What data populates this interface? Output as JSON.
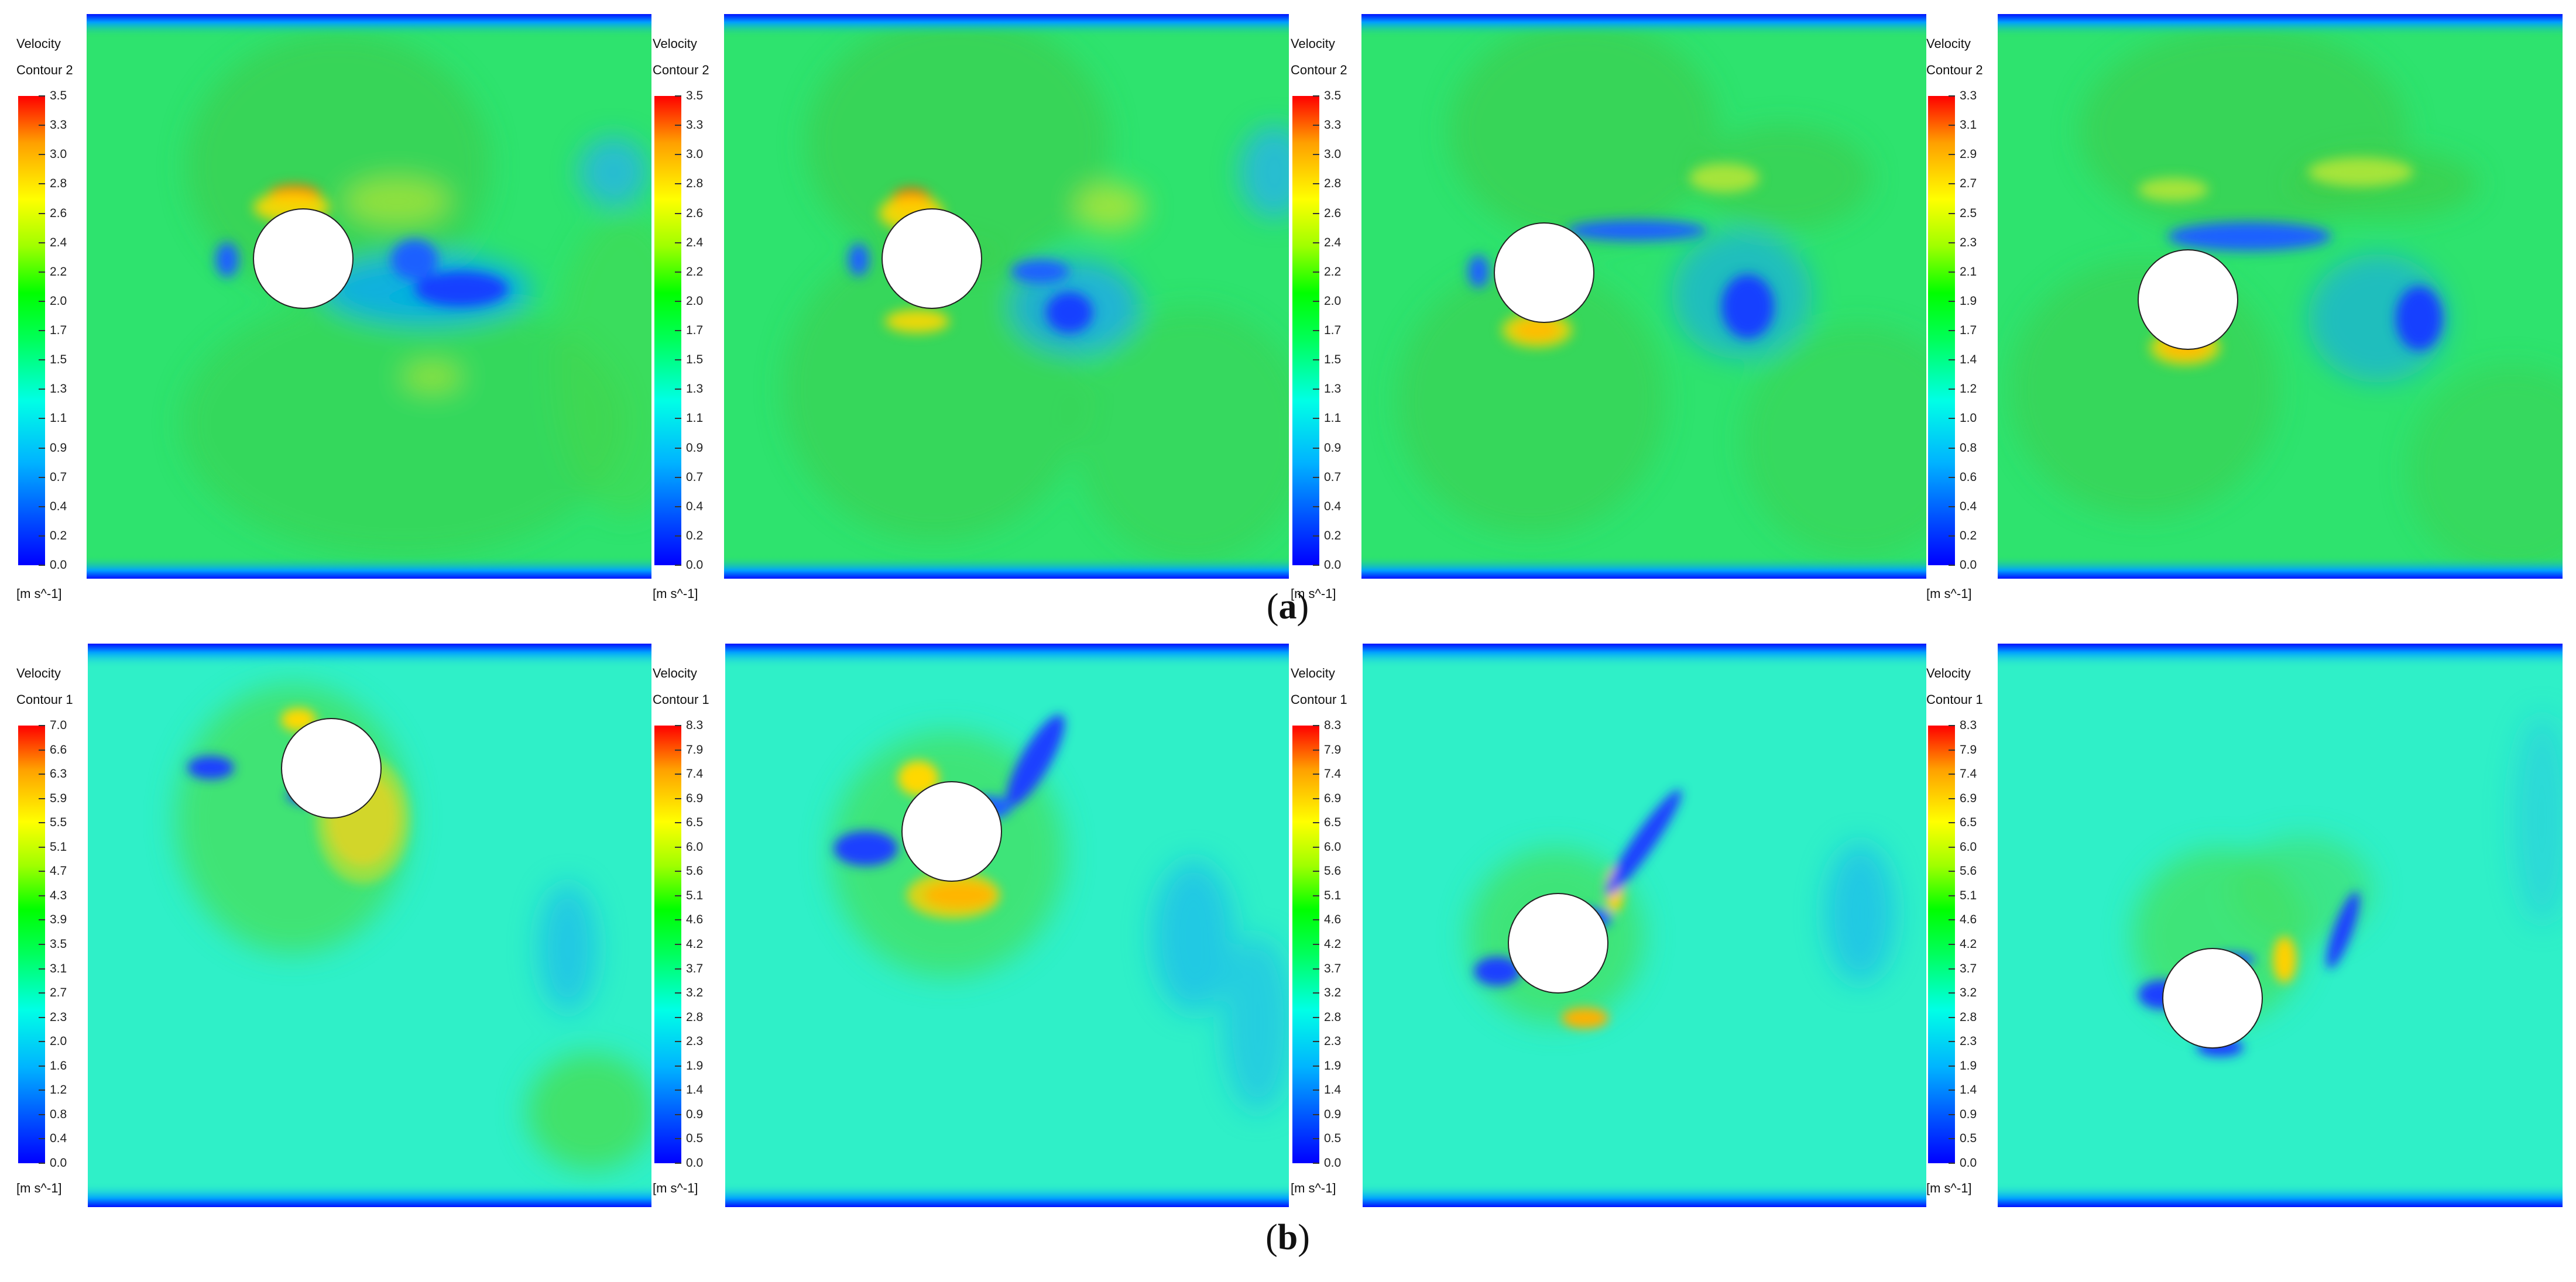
{
  "rows": [
    {
      "caption_letter": "a",
      "panels": [
        {
          "legend": {
            "title_line1": "Velocity",
            "title_line2": "Contour 2",
            "unit": "[m s^-1]",
            "ticks": [
              "3.5",
              "3.3",
              "3.0",
              "2.8",
              "2.6",
              "2.4",
              "2.2",
              "2.0",
              "1.7",
              "1.5",
              "1.3",
              "1.1",
              "0.9",
              "0.7",
              "0.4",
              "0.2",
              "0.0"
            ]
          }
        },
        {
          "legend": {
            "title_line1": "Velocity",
            "title_line2": "Contour 2",
            "unit": "[m s^-1]",
            "ticks": [
              "3.5",
              "3.3",
              "3.0",
              "2.8",
              "2.6",
              "2.4",
              "2.2",
              "2.0",
              "1.7",
              "1.5",
              "1.3",
              "1.1",
              "0.9",
              "0.7",
              "0.4",
              "0.2",
              "0.0"
            ]
          }
        },
        {
          "legend": {
            "title_line1": "Velocity",
            "title_line2": "Contour 2",
            "unit": "[m s^-1]",
            "ticks": [
              "3.5",
              "3.3",
              "3.0",
              "2.8",
              "2.6",
              "2.4",
              "2.2",
              "2.0",
              "1.7",
              "1.5",
              "1.3",
              "1.1",
              "0.9",
              "0.7",
              "0.4",
              "0.2",
              "0.0"
            ]
          }
        },
        {
          "legend": {
            "title_line1": "Velocity",
            "title_line2": "Contour 2",
            "unit": "[m s^-1]",
            "ticks": [
              "3.3",
              "3.1",
              "2.9",
              "2.7",
              "2.5",
              "2.3",
              "2.1",
              "1.9",
              "1.7",
              "1.4",
              "1.2",
              "1.0",
              "0.8",
              "0.6",
              "0.4",
              "0.2",
              "0.0"
            ]
          }
        }
      ]
    },
    {
      "caption_letter": "b",
      "panels": [
        {
          "legend": {
            "title_line1": "Velocity",
            "title_line2": "Contour 1",
            "unit": "[m s^-1]",
            "ticks": [
              "7.0",
              "6.6",
              "6.3",
              "5.9",
              "5.5",
              "5.1",
              "4.7",
              "4.3",
              "3.9",
              "3.5",
              "3.1",
              "2.7",
              "2.3",
              "2.0",
              "1.6",
              "1.2",
              "0.8",
              "0.4",
              "0.0"
            ]
          }
        },
        {
          "legend": {
            "title_line1": "Velocity",
            "title_line2": "Contour 1",
            "unit": "[m s^-1]",
            "ticks": [
              "8.3",
              "7.9",
              "7.4",
              "6.9",
              "6.5",
              "6.0",
              "5.6",
              "5.1",
              "4.6",
              "4.2",
              "3.7",
              "3.2",
              "2.8",
              "2.3",
              "1.9",
              "1.4",
              "0.9",
              "0.5",
              "0.0"
            ]
          }
        },
        {
          "legend": {
            "title_line1": "Velocity",
            "title_line2": "Contour 1",
            "unit": "[m s^-1]",
            "ticks": [
              "8.3",
              "7.9",
              "7.4",
              "6.9",
              "6.5",
              "6.0",
              "5.6",
              "5.1",
              "4.6",
              "4.2",
              "3.7",
              "3.2",
              "2.8",
              "2.3",
              "1.9",
              "1.4",
              "0.9",
              "0.5",
              "0.0"
            ]
          }
        },
        {
          "legend": {
            "title_line1": "Velocity",
            "title_line2": "Contour 1",
            "unit": "[m s^-1]",
            "ticks": [
              "8.3",
              "7.9",
              "7.4",
              "6.9",
              "6.5",
              "6.0",
              "5.6",
              "5.1",
              "4.6",
              "4.2",
              "3.7",
              "3.2",
              "2.8",
              "2.3",
              "1.9",
              "1.4",
              "0.9",
              "0.5",
              "0.0"
            ]
          }
        }
      ]
    }
  ],
  "colors": {
    "row_a_background": "#2ee36e",
    "row_b_background": "#2ff0c8",
    "wall": "#0000ff",
    "cylinder": "#ffffff"
  }
}
